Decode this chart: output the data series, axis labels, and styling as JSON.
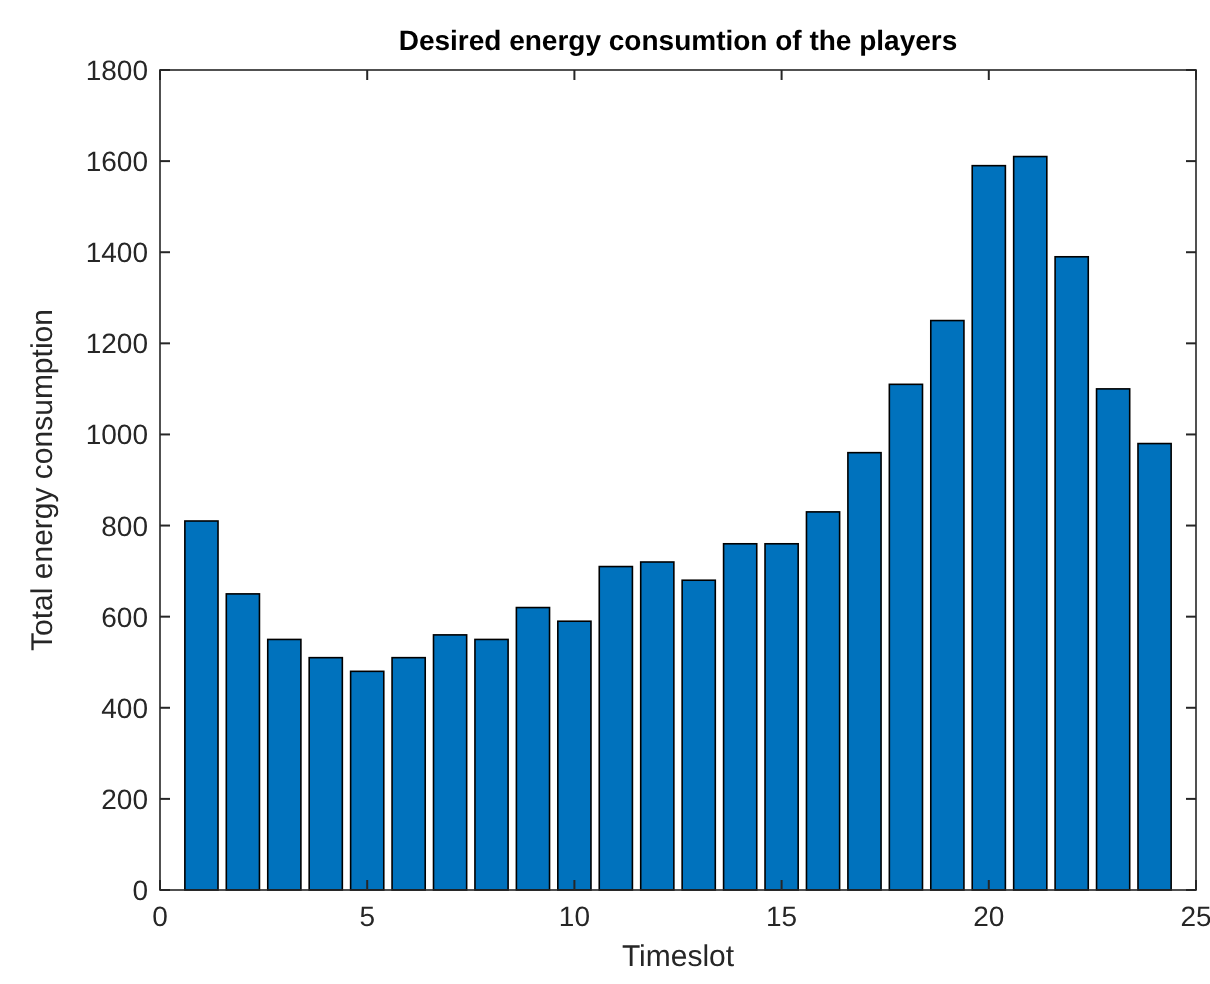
{
  "chart_data": {
    "type": "bar",
    "title": "Desired energy consumtion of the players",
    "xlabel": "Timeslot",
    "ylabel": "Total energy consumption",
    "x": [
      1,
      2,
      3,
      4,
      5,
      6,
      7,
      8,
      9,
      10,
      11,
      12,
      13,
      14,
      15,
      16,
      17,
      18,
      19,
      20,
      21,
      22,
      23,
      24
    ],
    "values": [
      810,
      650,
      550,
      510,
      480,
      510,
      560,
      550,
      620,
      590,
      710,
      720,
      680,
      760,
      760,
      830,
      960,
      1110,
      1250,
      1590,
      1610,
      1390,
      1100,
      980
    ],
    "color": "#0072bd",
    "xlim": [
      0,
      25
    ],
    "xticks": [
      0,
      5,
      10,
      15,
      20,
      25
    ],
    "ylim": [
      0,
      1800
    ],
    "yticks": [
      0,
      200,
      400,
      600,
      800,
      1000,
      1200,
      1400,
      1600,
      1800
    ]
  }
}
